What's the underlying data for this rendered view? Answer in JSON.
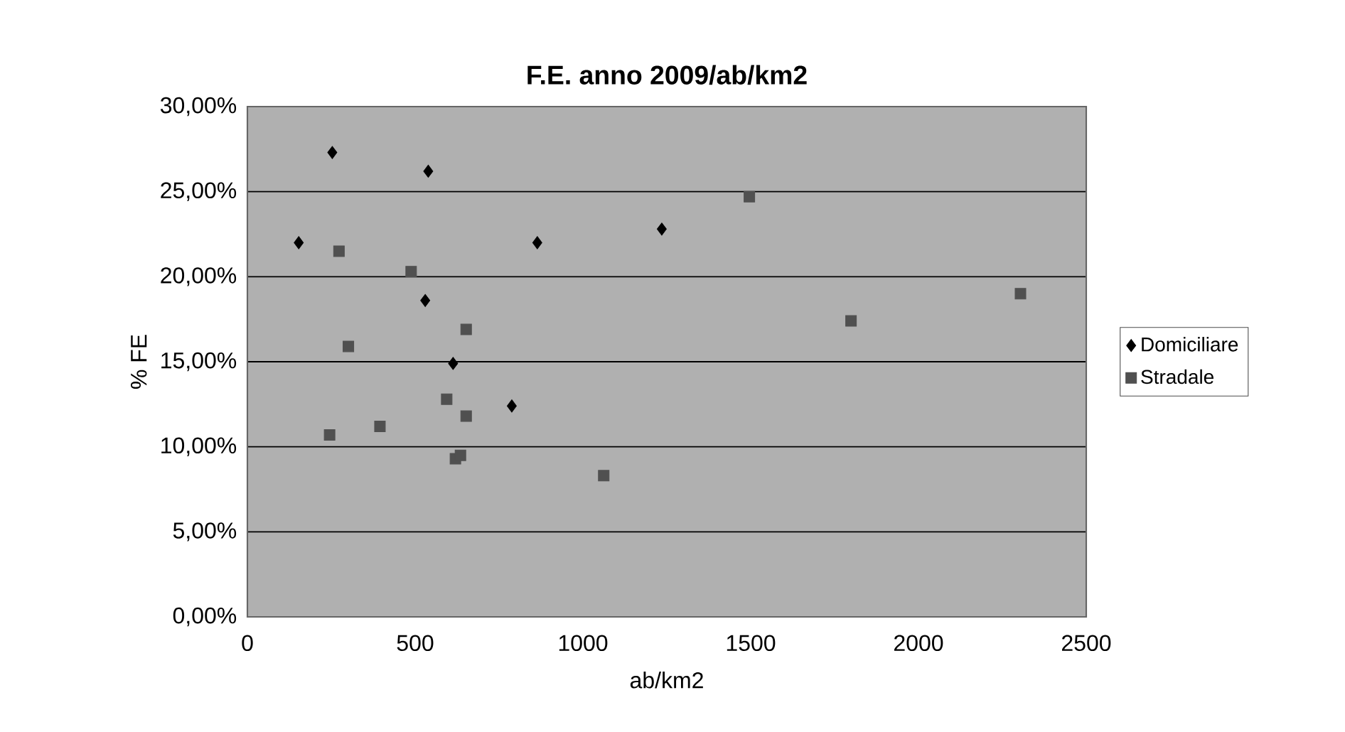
{
  "chart_data": {
    "type": "scatter",
    "title": "F.E. anno 2009/ab/km2",
    "xlabel": "ab/km2",
    "ylabel": "% FE",
    "series": [
      {
        "name": "Domiciliare",
        "color": "#000000",
        "marker": "diamond",
        "x": [
          253,
          539,
          153,
          864,
          1235,
          530,
          613,
          788
        ],
        "values": [
          27.3,
          26.2,
          22.0,
          22.0,
          22.8,
          18.6,
          14.9,
          12.4
        ]
      },
      {
        "name": "Stradale",
        "color": "#505050",
        "marker": "square",
        "x": [
          273,
          488,
          652,
          301,
          594,
          652,
          395,
          245,
          620,
          635,
          1062,
          1496,
          1799,
          2304
        ],
        "values": [
          21.5,
          20.3,
          16.9,
          15.9,
          12.8,
          11.8,
          11.2,
          10.7,
          9.3,
          9.5,
          8.3,
          24.7,
          17.4,
          19.0
        ]
      }
    ],
    "xlim": [
      0,
      2500
    ],
    "xticks": [
      0,
      500,
      1000,
      1500,
      2000,
      2500
    ],
    "ylim": [
      0,
      30
    ],
    "yticks": [
      {
        "value": 0,
        "label": "0,00%"
      },
      {
        "value": 5,
        "label": "5,00%"
      },
      {
        "value": 10,
        "label": "10,00%"
      },
      {
        "value": 15,
        "label": "15,00%"
      },
      {
        "value": 20,
        "label": "20,00%"
      },
      {
        "value": 25,
        "label": "25,00%"
      },
      {
        "value": 30,
        "label": "30,00%"
      }
    ],
    "grid": "y",
    "legend": "right"
  }
}
